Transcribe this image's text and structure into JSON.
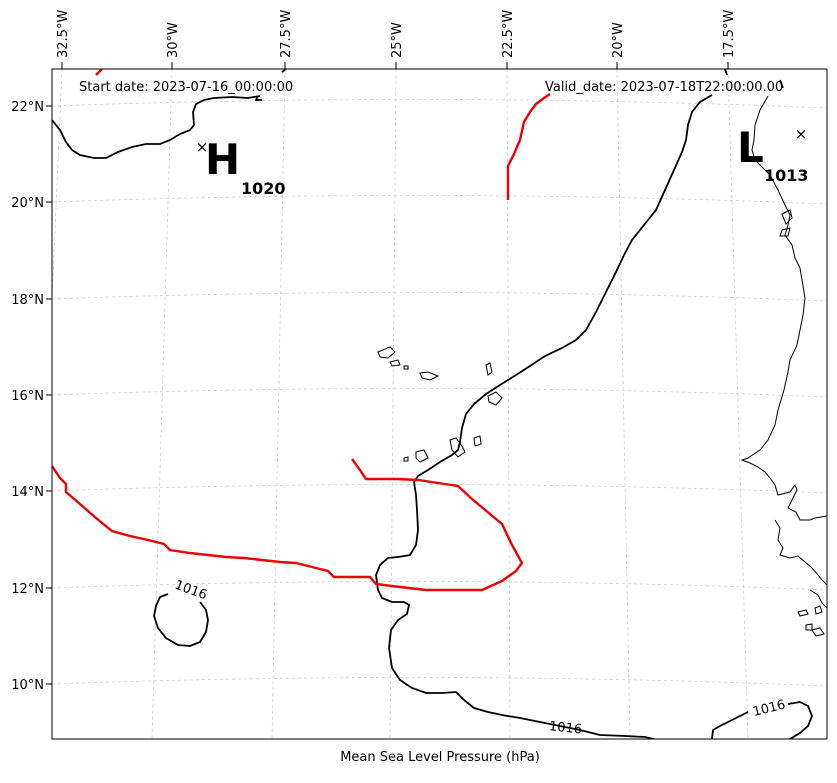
{
  "map": {
    "start_date": "Start date: 2023-07-16_00:00:00",
    "valid_date": "Valid_date: 2023-07-18T22:00:00.00",
    "caption": "Mean Sea Level Pressure (hPa)",
    "lon_ticks": [
      "32.5°W",
      "30°W",
      "27.5°W",
      "25°W",
      "22.5°W",
      "20°W",
      "17.5°W"
    ],
    "lat_ticks": [
      "22°N",
      "20°N",
      "18°N",
      "16°N",
      "14°N",
      "12°N",
      "10°N"
    ],
    "contour_labels": [
      "1016",
      "1016",
      "1016"
    ],
    "pressure_centers": [
      {
        "letter": "H",
        "value": "1020"
      },
      {
        "letter": "L",
        "value": "1013"
      }
    ],
    "colors": {
      "isobar": "#000000",
      "highlight_isobar": "#ee0000",
      "coastline": "#000000",
      "gridline": "#c8c8c8"
    }
  }
}
